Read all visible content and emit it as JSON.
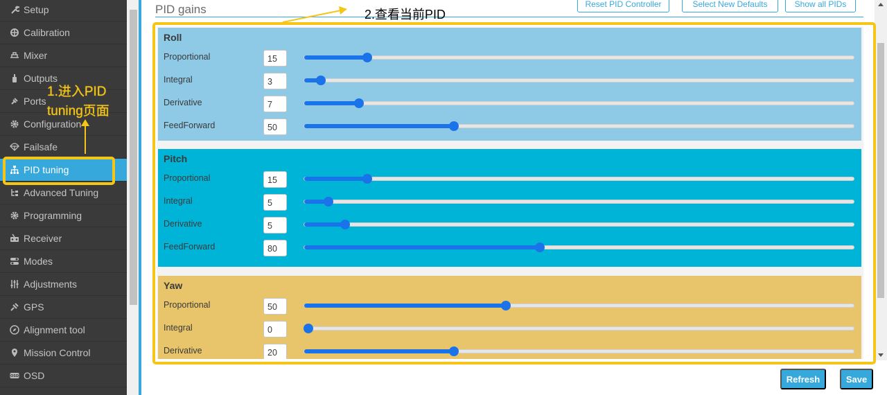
{
  "sidebar": {
    "items": [
      {
        "label": "Setup",
        "icon": "wrench-icon",
        "active": false
      },
      {
        "label": "Calibration",
        "icon": "crosshair-icon",
        "active": false
      },
      {
        "label": "Mixer",
        "icon": "mixer-icon",
        "active": false
      },
      {
        "label": "Outputs",
        "icon": "bottle-icon",
        "active": false
      },
      {
        "label": "Ports",
        "icon": "plug-icon",
        "active": false
      },
      {
        "label": "Configuration",
        "icon": "gear-icon",
        "active": false
      },
      {
        "label": "Failsafe",
        "icon": "parachute-icon",
        "active": false
      },
      {
        "label": "PID tuning",
        "icon": "hierarchy-icon",
        "active": true
      },
      {
        "label": "Advanced Tuning",
        "icon": "tree-icon",
        "active": false
      },
      {
        "label": "Programming",
        "icon": "gear-icon",
        "active": false
      },
      {
        "label": "Receiver",
        "icon": "receiver-icon",
        "active": false
      },
      {
        "label": "Modes",
        "icon": "toggles-icon",
        "active": false
      },
      {
        "label": "Adjustments",
        "icon": "sliders-icon",
        "active": false
      },
      {
        "label": "GPS",
        "icon": "satellite-icon",
        "active": false
      },
      {
        "label": "Alignment tool",
        "icon": "compass-icon",
        "active": false
      },
      {
        "label": "Mission Control",
        "icon": "map-pin-icon",
        "active": false
      },
      {
        "label": "OSD",
        "icon": "osd-icon",
        "active": false
      }
    ]
  },
  "main": {
    "section_title": "PID gains",
    "top_buttons": {
      "reset": "Reset PID Controller",
      "defaults": "Select New Defaults",
      "show_all": "Show all PIDs"
    },
    "groups": [
      {
        "name": "Roll",
        "color": "#8ec9e6",
        "rows": [
          {
            "label": "Proportional",
            "value": "15",
            "fill": 0.115
          },
          {
            "label": "Integral",
            "value": "3",
            "fill": 0.03
          },
          {
            "label": "Derivative",
            "value": "7",
            "fill": 0.1
          },
          {
            "label": "FeedForward",
            "value": "50",
            "fill": 0.272
          }
        ]
      },
      {
        "name": "Pitch",
        "color": "#00b4d8",
        "rows": [
          {
            "label": "Proportional",
            "value": "15",
            "fill": 0.115
          },
          {
            "label": "Integral",
            "value": "5",
            "fill": 0.044
          },
          {
            "label": "Derivative",
            "value": "5",
            "fill": 0.074
          },
          {
            "label": "FeedForward",
            "value": "80",
            "fill": 0.429
          }
        ]
      },
      {
        "name": "Yaw",
        "color": "#e8c46a",
        "rows": [
          {
            "label": "Proportional",
            "value": "50",
            "fill": 0.367
          },
          {
            "label": "Integral",
            "value": "0",
            "fill": 0.008
          },
          {
            "label": "Derivative",
            "value": "20",
            "fill": 0.272
          }
        ]
      }
    ],
    "bottom_buttons": {
      "refresh": "Refresh",
      "save": "Save"
    }
  },
  "annotations": {
    "step1_line1": "1.进入PID",
    "step1_line2": "tuning页面",
    "step2": "2.查看当前PID",
    "highlight_color": "#f5c518"
  }
}
